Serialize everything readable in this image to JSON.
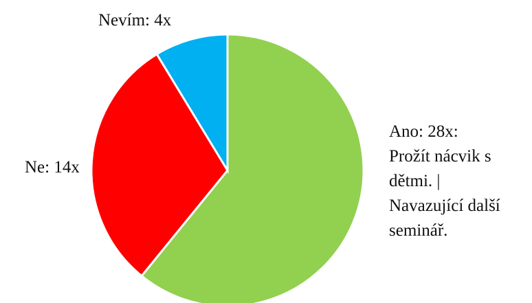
{
  "chart_data": {
    "type": "pie",
    "slices": [
      {
        "label": "Ano",
        "value": 28,
        "color": "#92D050",
        "label_lines": [
          "Ano: 28x:",
          "Prožít nácvik s",
          "dětmi. |",
          "Navazující další",
          "seminář."
        ]
      },
      {
        "label": "Ne",
        "value": 14,
        "color": "#FF0000",
        "label_lines": [
          "Ne: 14x"
        ]
      },
      {
        "label": "Nevím",
        "value": 4,
        "color": "#00B0F0",
        "label_lines": [
          "Nevím: 4x"
        ]
      }
    ],
    "start": "12 o'clock",
    "direction": "clockwise",
    "legend": "none"
  }
}
